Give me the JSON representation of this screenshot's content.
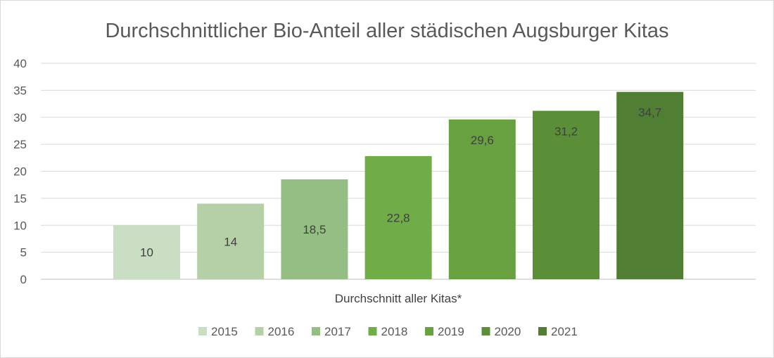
{
  "chart_data": {
    "type": "bar",
    "title": "Durchschnittlicher Bio-Anteil aller städischen Augsburger Kitas",
    "xlabel": "Durchschnitt aller Kitas*",
    "ylabel": "",
    "categories": [
      "Durchschnitt aller Kitas*"
    ],
    "ylim": [
      0,
      40
    ],
    "yticks": [
      "0",
      "5",
      "10",
      "15",
      "20",
      "25",
      "30",
      "35",
      "40"
    ],
    "ytick_values": [
      0,
      5,
      10,
      15,
      20,
      25,
      30,
      35,
      40
    ],
    "grid": true,
    "legend_position": "bottom",
    "series": [
      {
        "name": "2015",
        "value": 10,
        "label": "10",
        "color": "#c9dec3"
      },
      {
        "name": "2016",
        "value": 14,
        "label": "14",
        "color": "#b3d0a7"
      },
      {
        "name": "2017",
        "value": 18.5,
        "label": "18,5",
        "color": "#94be84"
      },
      {
        "name": "2018",
        "value": 22.8,
        "label": "22,8",
        "color": "#70ad47"
      },
      {
        "name": "2019",
        "value": 29.6,
        "label": "29,6",
        "color": "#67a140"
      },
      {
        "name": "2020",
        "value": 31.2,
        "label": "31,2",
        "color": "#5a8f38"
      },
      {
        "name": "2021",
        "value": 34.7,
        "label": "34,7",
        "color": "#507e32"
      }
    ]
  }
}
